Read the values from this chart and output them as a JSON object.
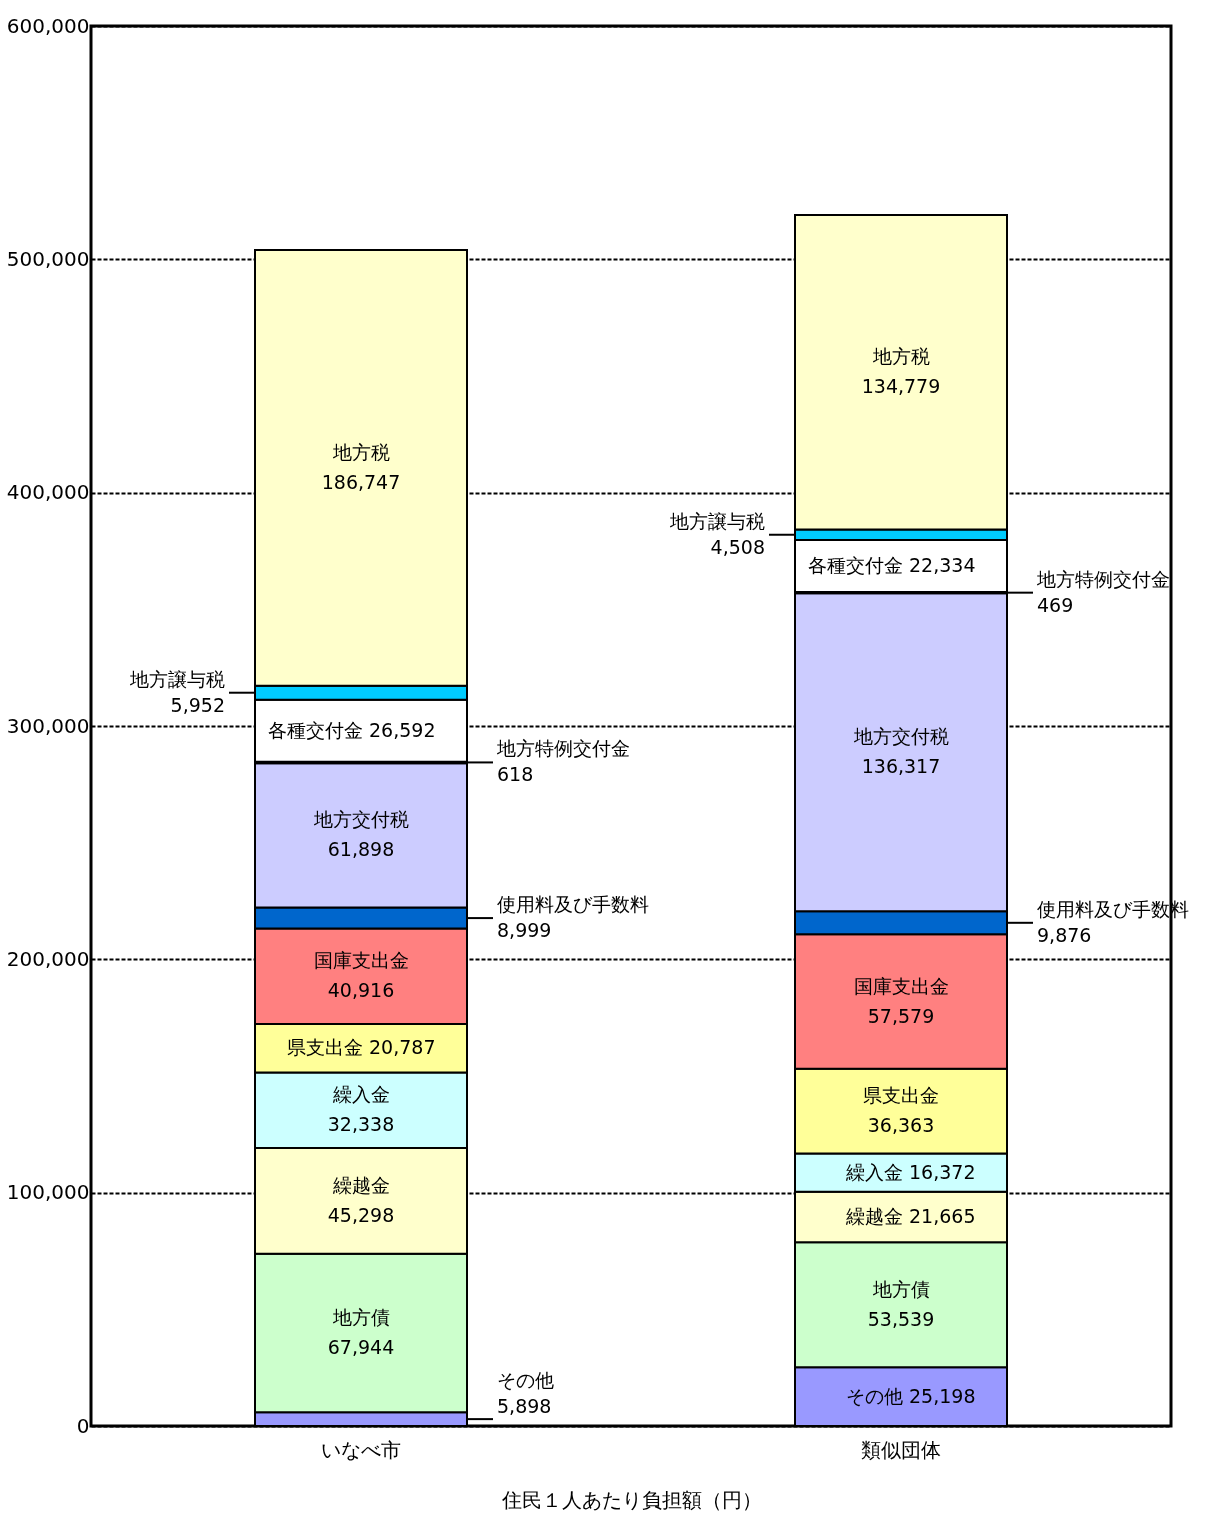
{
  "chart_data": {
    "type": "bar",
    "stacked": true,
    "xlabel": "住民１人あたり負担額（円）",
    "categories": [
      "いなべ市",
      "類似団体"
    ],
    "series": [
      {
        "name": "その他",
        "color": "#9999ff",
        "values": [
          5898,
          25198
        ],
        "value_labels": [
          "5,898",
          "25,198"
        ]
      },
      {
        "name": "地方債",
        "color": "#ccffcc",
        "values": [
          67944,
          53539
        ],
        "value_labels": [
          "67,944",
          "53,539"
        ]
      },
      {
        "name": "繰越金",
        "color": "#ffffcc",
        "values": [
          45298,
          21665
        ],
        "value_labels": [
          "45,298",
          "21,665"
        ]
      },
      {
        "name": "繰入金",
        "color": "#ccffff",
        "values": [
          32338,
          16372
        ],
        "value_labels": [
          "32,338",
          "16,372"
        ]
      },
      {
        "name": "県支出金",
        "color": "#ffff99",
        "values": [
          20787,
          36363
        ],
        "value_labels": [
          "20,787",
          "36,363"
        ]
      },
      {
        "name": "国庫支出金",
        "color": "#ff8080",
        "values": [
          40916,
          57579
        ],
        "value_labels": [
          "40,916",
          "57,579"
        ]
      },
      {
        "name": "使用料及び手数料",
        "color": "#0066cc",
        "values": [
          8999,
          9876
        ],
        "value_labels": [
          "8,999",
          "9,876"
        ]
      },
      {
        "name": "地方交付税",
        "color": "#ccccff",
        "values": [
          61898,
          136317
        ],
        "value_labels": [
          "61,898",
          "136,317"
        ]
      },
      {
        "name": "地方特例交付金",
        "color": "#000000",
        "values": [
          618,
          469
        ],
        "value_labels": [
          "618",
          "469"
        ]
      },
      {
        "name": "各種交付金",
        "color": "#ffffff",
        "values": [
          26592,
          22334
        ],
        "value_labels": [
          "26,592",
          "22,334"
        ]
      },
      {
        "name": "地方譲与税",
        "color": "#00ccff",
        "values": [
          5952,
          4508
        ],
        "value_labels": [
          "5,952",
          "4,508"
        ]
      },
      {
        "name": "地方税",
        "color": "#ffffcc",
        "values": [
          186747,
          134779
        ],
        "value_labels": [
          "186,747",
          "134,779"
        ]
      }
    ],
    "ylim": [
      0,
      600000
    ],
    "yticks": [
      0,
      {
        "value": 100000,
        "label": "100,000"
      },
      {
        "value": 200000,
        "label": "200,000"
      },
      {
        "value": 300000,
        "label": "300,000"
      },
      {
        "value": 400000,
        "label": "400,000"
      },
      {
        "value": 500000,
        "label": "500,000"
      },
      {
        "value": 600000,
        "label": "600,000"
      }
    ],
    "grid": "y",
    "legend": false
  }
}
